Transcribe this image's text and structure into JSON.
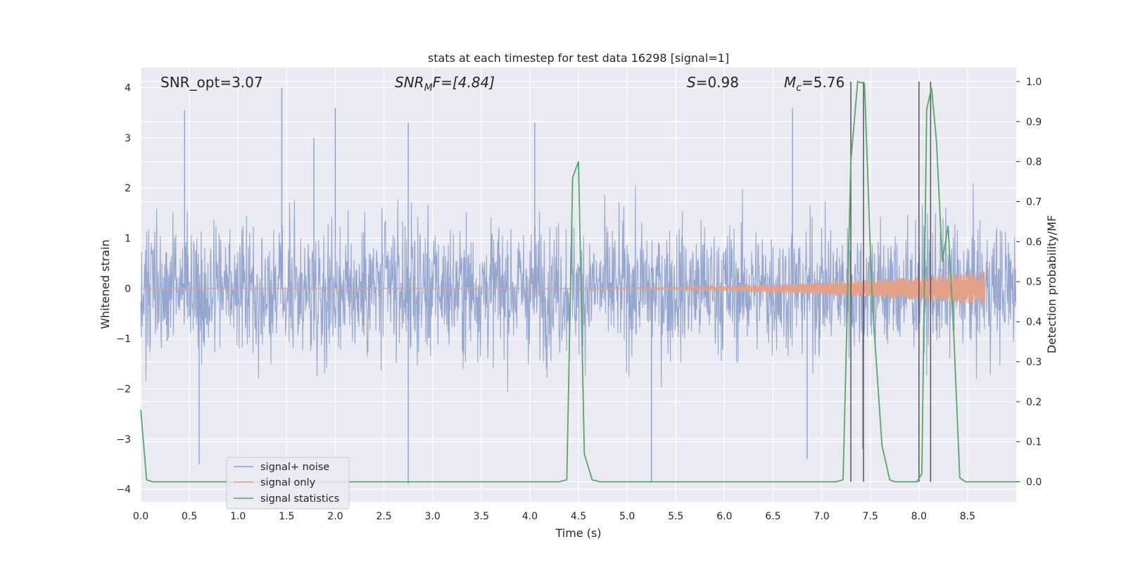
{
  "chart_data": {
    "type": "line",
    "title": "stats at each timestep for test data 16298 [signal=1]",
    "xlabel": "Time (s)",
    "ylabel_left": "Whitened strain",
    "ylabel_right": "Detection probability/MF",
    "xlim": [
      0,
      9.0
    ],
    "ylim_left": [
      -4.25,
      4.4
    ],
    "ylim_right": [
      -0.05,
      1.035
    ],
    "x_ticks": [
      "0.0",
      "0.5",
      "1.0",
      "1.5",
      "2.0",
      "2.5",
      "3.0",
      "3.5",
      "4.0",
      "4.5",
      "5.0",
      "5.5",
      "6.0",
      "6.5",
      "7.0",
      "7.5",
      "8.0",
      "8.5"
    ],
    "y_ticks_left": [
      "4",
      "3",
      "2",
      "1",
      "0",
      "−1",
      "−2",
      "−3",
      "−4"
    ],
    "y_ticks_right": [
      "1.0",
      "0.9",
      "0.8",
      "0.7",
      "0.6",
      "0.5",
      "0.4",
      "0.3",
      "0.2",
      "0.1",
      "0.0"
    ],
    "grid": true,
    "legend_position": "lower-left",
    "annotations": {
      "snr_opt": "SNR_opt=3.07",
      "snr_mf_main": "SNR",
      "snr_mf_sub": "M",
      "snr_mf_tail": "F=[4.84]",
      "s_main": "S",
      "s_tail": "=0.98",
      "mc_main": "M",
      "mc_sub": "c",
      "mc_tail": "=5.76"
    },
    "series": [
      {
        "name": "signal+ noise",
        "color": "#8da0cb",
        "axis": "left",
        "description_points": "whitened strain noise, roughly within [-2.5, 2.5] with spikes to about +/-4",
        "peaks": [
          {
            "x": 0.45,
            "y": 3.55
          },
          {
            "x": 1.45,
            "y": 4.0
          },
          {
            "x": 2.0,
            "y": 3.6
          },
          {
            "x": 2.75,
            "y": 3.3
          },
          {
            "x": 4.05,
            "y": 3.3
          },
          {
            "x": 6.7,
            "y": 3.6
          },
          {
            "x": 1.78,
            "y": 3.0
          }
        ],
        "troughs": [
          {
            "x": 0.6,
            "y": -3.5
          },
          {
            "x": 2.75,
            "y": -3.9
          },
          {
            "x": 5.25,
            "y": -3.85
          },
          {
            "x": 6.85,
            "y": -3.4
          },
          {
            "x": 7.42,
            "y": -3.2
          }
        ]
      },
      {
        "name": "signal only",
        "color": "#e5a088",
        "axis": "left",
        "chirp_start_x": 3.9,
        "chirp_end_x": 8.68,
        "chirp_max_amplitude": 0.33
      },
      {
        "name": "signal statistics",
        "color": "#55a868",
        "axis": "right",
        "x": [
          0.0,
          0.06,
          0.12,
          0.2,
          0.5,
          1.0,
          2.0,
          3.0,
          4.0,
          4.3,
          4.38,
          4.44,
          4.5,
          4.56,
          4.64,
          4.72,
          4.85,
          5.0,
          5.2,
          5.5,
          6.0,
          6.5,
          7.0,
          7.15,
          7.22,
          7.3,
          7.37,
          7.44,
          7.52,
          7.62,
          7.7,
          7.75,
          7.85,
          7.98,
          8.03,
          8.08,
          8.13,
          8.18,
          8.24,
          8.3,
          8.36,
          8.42,
          8.48,
          8.55,
          8.7,
          8.9,
          9.0
        ],
        "y": [
          0.18,
          0.005,
          0.0,
          0.0,
          0.0,
          0.0,
          0.0,
          0.0,
          0.0,
          0.0,
          0.005,
          0.76,
          0.8,
          0.07,
          0.005,
          0.0,
          0.0,
          0.0,
          0.0,
          0.0,
          0.0,
          0.0,
          0.0,
          0.0,
          0.005,
          0.8,
          1.0,
          0.995,
          0.45,
          0.09,
          0.005,
          0.0,
          0.0,
          0.0,
          0.02,
          0.93,
          0.985,
          0.85,
          0.55,
          0.64,
          0.36,
          0.01,
          0.0,
          0.0,
          0.0,
          0.0,
          0.0
        ]
      }
    ],
    "vertical_lines_x": [
      7.3,
      7.43,
      8.0,
      8.12
    ],
    "vertical_lines_color": "#555555"
  }
}
